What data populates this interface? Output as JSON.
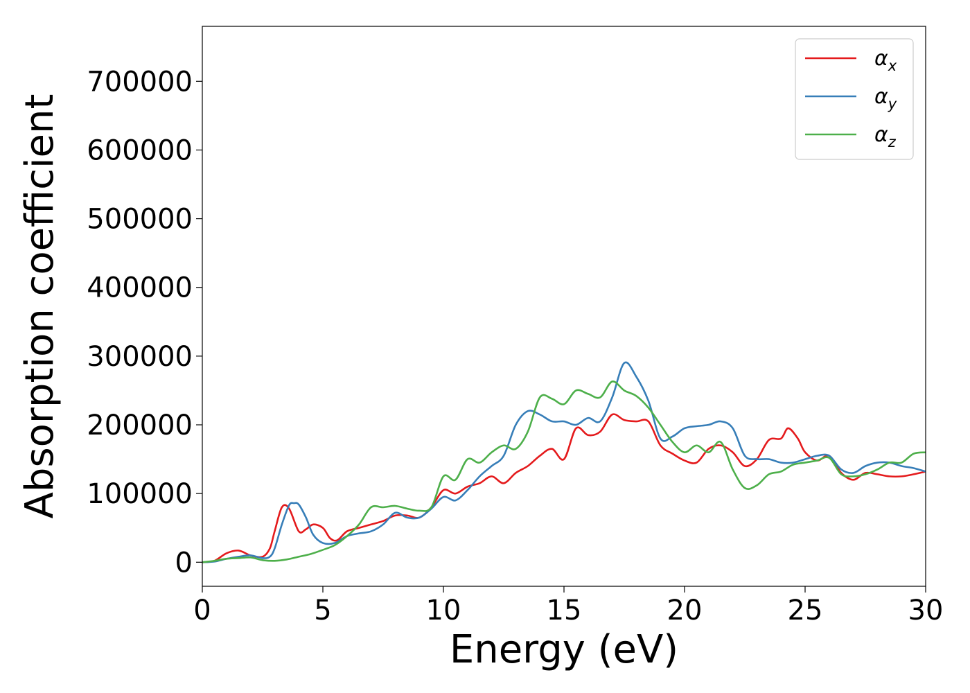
{
  "chart_data": {
    "type": "line",
    "title": "",
    "xlabel": "Energy (eV)",
    "ylabel": "Absorption coefficient",
    "xlim": [
      0,
      30
    ],
    "ylim": [
      -35000,
      780000
    ],
    "xticks": [
      0,
      5,
      10,
      15,
      20,
      25,
      30
    ],
    "yticks": [
      0,
      100000,
      200000,
      300000,
      400000,
      500000,
      600000,
      700000
    ],
    "grid": false,
    "legend_position": "top-right",
    "series": [
      {
        "name": "α_x",
        "legend_base": "α",
        "legend_sub": "x",
        "color": "#e41a1c",
        "x": [
          0,
          0.5,
          1.0,
          1.5,
          2.0,
          2.5,
          2.8,
          3.0,
          3.3,
          3.6,
          4.0,
          4.3,
          4.6,
          5.0,
          5.3,
          5.6,
          6.0,
          6.5,
          7.0,
          7.5,
          8.0,
          8.5,
          9.0,
          9.5,
          10.0,
          10.5,
          11.0,
          11.5,
          12.0,
          12.5,
          13.0,
          13.5,
          14.0,
          14.5,
          15.0,
          15.5,
          16.0,
          16.5,
          17.0,
          17.5,
          18.0,
          18.5,
          19.0,
          19.5,
          20.0,
          20.5,
          21.0,
          21.5,
          22.0,
          22.5,
          23.0,
          23.5,
          24.0,
          24.3,
          24.7,
          25.0,
          25.5,
          26.0,
          26.5,
          27.0,
          27.5,
          28.0,
          28.5,
          29.0,
          29.5,
          30.0
        ],
        "y": [
          0,
          2000,
          13000,
          17000,
          10000,
          8000,
          20000,
          45000,
          80000,
          78000,
          45000,
          48000,
          55000,
          50000,
          35000,
          32000,
          45000,
          50000,
          55000,
          60000,
          68000,
          68000,
          65000,
          80000,
          105000,
          100000,
          110000,
          115000,
          125000,
          115000,
          130000,
          140000,
          155000,
          165000,
          150000,
          195000,
          185000,
          190000,
          215000,
          207000,
          205000,
          205000,
          170000,
          158000,
          148000,
          145000,
          165000,
          170000,
          160000,
          140000,
          150000,
          178000,
          180000,
          195000,
          180000,
          160000,
          148000,
          155000,
          130000,
          120000,
          130000,
          128000,
          125000,
          125000,
          128000,
          132000
        ]
      },
      {
        "name": "α_y",
        "legend_base": "α",
        "legend_sub": "y",
        "color": "#377eb8",
        "x": [
          0,
          0.5,
          1.0,
          1.5,
          2.0,
          2.5,
          2.8,
          3.0,
          3.3,
          3.6,
          3.8,
          4.0,
          4.3,
          4.6,
          5.0,
          5.5,
          6.0,
          6.5,
          7.0,
          7.5,
          8.0,
          8.5,
          9.0,
          9.5,
          10.0,
          10.5,
          11.0,
          11.5,
          12.0,
          12.5,
          13.0,
          13.5,
          14.0,
          14.5,
          15.0,
          15.5,
          16.0,
          16.5,
          17.0,
          17.5,
          18.0,
          18.5,
          19.0,
          19.5,
          20.0,
          20.5,
          21.0,
          21.5,
          22.0,
          22.5,
          23.0,
          23.5,
          24.0,
          24.5,
          25.0,
          25.5,
          26.0,
          26.5,
          27.0,
          27.5,
          28.0,
          28.5,
          29.0,
          29.5,
          30.0
        ],
        "y": [
          0,
          1000,
          5000,
          8000,
          10000,
          6000,
          8000,
          20000,
          55000,
          83000,
          86000,
          84000,
          65000,
          40000,
          28000,
          28000,
          38000,
          42000,
          45000,
          55000,
          72000,
          65000,
          65000,
          78000,
          95000,
          90000,
          105000,
          125000,
          140000,
          155000,
          200000,
          220000,
          215000,
          205000,
          205000,
          200000,
          210000,
          205000,
          240000,
          290000,
          270000,
          235000,
          180000,
          183000,
          195000,
          198000,
          200000,
          205000,
          195000,
          155000,
          150000,
          150000,
          145000,
          145000,
          150000,
          155000,
          155000,
          135000,
          130000,
          140000,
          145000,
          145000,
          140000,
          137000,
          132000
        ]
      },
      {
        "name": "α_z",
        "legend_base": "α",
        "legend_sub": "z",
        "color": "#4daf4a",
        "x": [
          0,
          0.5,
          1.0,
          1.5,
          2.0,
          2.5,
          3.0,
          3.5,
          4.0,
          4.5,
          5.0,
          5.5,
          6.0,
          6.5,
          7.0,
          7.5,
          8.0,
          8.5,
          9.0,
          9.5,
          10.0,
          10.5,
          11.0,
          11.5,
          12.0,
          12.5,
          13.0,
          13.5,
          14.0,
          14.5,
          15.0,
          15.5,
          16.0,
          16.5,
          17.0,
          17.5,
          18.0,
          18.5,
          19.0,
          19.5,
          20.0,
          20.5,
          21.0,
          21.5,
          22.0,
          22.5,
          23.0,
          23.5,
          24.0,
          24.5,
          25.0,
          25.5,
          26.0,
          26.5,
          27.0,
          27.5,
          28.0,
          28.5,
          29.0,
          29.5,
          30.0
        ],
        "y": [
          0,
          2000,
          5000,
          6000,
          7000,
          3000,
          2000,
          4000,
          8000,
          12000,
          18000,
          25000,
          38000,
          55000,
          80000,
          80000,
          82000,
          78000,
          75000,
          80000,
          125000,
          120000,
          150000,
          145000,
          160000,
          170000,
          165000,
          190000,
          240000,
          238000,
          230000,
          250000,
          245000,
          240000,
          263000,
          250000,
          242000,
          225000,
          200000,
          175000,
          160000,
          170000,
          160000,
          175000,
          135000,
          108000,
          112000,
          128000,
          132000,
          142000,
          145000,
          148000,
          152000,
          128000,
          125000,
          128000,
          135000,
          145000,
          145000,
          158000,
          160000
        ]
      }
    ]
  }
}
